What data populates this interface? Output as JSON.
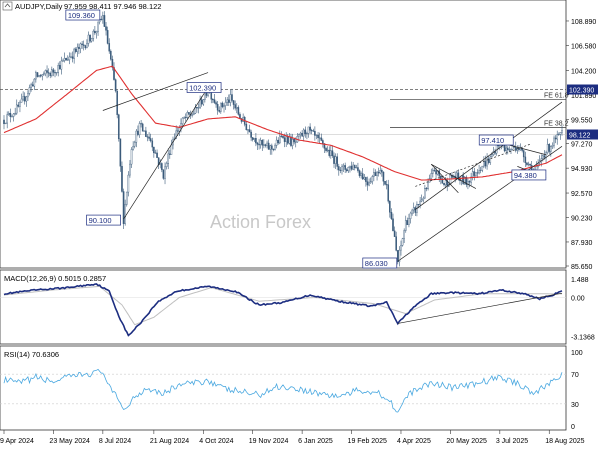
{
  "chart_data": {
    "type": "line",
    "watermark": "Action Forex",
    "title": "AUDJPY,Daily",
    "ohlc_text": "97.959 98.411 97.946 98.122",
    "x": [
      "9 Apr 2024",
      "23 May 2024",
      "8 Jul 2024",
      "21 Aug 2024",
      "4 Oct 2024",
      "19 Nov 2024",
      "6 Jan 2025",
      "19 Feb 2025",
      "4 Apr 2025",
      "20 May 2025",
      "3 Jul 2025",
      "18 Aug 2025"
    ],
    "price_panel": {
      "ylim": [
        85.65,
        110.5
      ],
      "y_ticks": [
        "108.890",
        "106.580",
        "104.200",
        "101.890",
        "99.550",
        "97.270",
        "94.930",
        "92.570",
        "90.230",
        "87.930",
        "85.650"
      ],
      "y_tick_values": [
        108.89,
        106.58,
        104.2,
        101.89,
        99.55,
        97.27,
        94.93,
        92.57,
        90.23,
        87.93,
        85.65
      ],
      "current_price": 98.122,
      "current_price_label": "98.122",
      "resistance_level": 102.39,
      "resistance_label": "102.390",
      "fib_levels": [
        {
          "name": "FE 61.8",
          "value": 101.45
        },
        {
          "name": "FE 38.2",
          "value": 98.8
        }
      ],
      "annotations": [
        {
          "label": "109.360",
          "value": 109.36,
          "date_index": 62
        },
        {
          "label": "90.100",
          "value": 90.1,
          "date_index": 75
        },
        {
          "label": "102.390",
          "value": 102.39,
          "date_index": 128
        },
        {
          "label": "86.030",
          "value": 86.03,
          "date_index": 247
        },
        {
          "label": "97.410",
          "value": 97.41,
          "date_index": 310
        },
        {
          "label": "94.380",
          "value": 94.38,
          "date_index": 333
        }
      ],
      "series": [
        {
          "type": "candlestick",
          "color": "#3a5a7a",
          "values": [
            {
              "i": 0,
              "c": 99.5
            },
            {
              "i": 10,
              "c": 100.8
            },
            {
              "i": 20,
              "c": 103.6
            },
            {
              "i": 30,
              "c": 104.0
            },
            {
              "i": 40,
              "c": 105.4
            },
            {
              "i": 50,
              "c": 106.6
            },
            {
              "i": 58,
              "c": 108.1
            },
            {
              "i": 62,
              "c": 109.36
            },
            {
              "i": 66,
              "c": 106.0
            },
            {
              "i": 70,
              "c": 102.2
            },
            {
              "i": 75,
              "c": 90.1
            },
            {
              "i": 80,
              "c": 97.0
            },
            {
              "i": 85,
              "c": 98.9
            },
            {
              "i": 92,
              "c": 97.6
            },
            {
              "i": 100,
              "c": 94.3
            },
            {
              "i": 106,
              "c": 97.8
            },
            {
              "i": 113,
              "c": 99.6
            },
            {
              "i": 120,
              "c": 100.3
            },
            {
              "i": 128,
              "c": 102.39
            },
            {
              "i": 135,
              "c": 100.6
            },
            {
              "i": 142,
              "c": 101.5
            },
            {
              "i": 148,
              "c": 99.8
            },
            {
              "i": 155,
              "c": 98.2
            },
            {
              "i": 162,
              "c": 97.0
            },
            {
              "i": 168,
              "c": 96.8
            },
            {
              "i": 175,
              "c": 98.0
            },
            {
              "i": 182,
              "c": 97.2
            },
            {
              "i": 190,
              "c": 98.6
            },
            {
              "i": 198,
              "c": 97.4
            },
            {
              "i": 205,
              "c": 96.2
            },
            {
              "i": 212,
              "c": 94.8
            },
            {
              "i": 220,
              "c": 95.2
            },
            {
              "i": 228,
              "c": 93.6
            },
            {
              "i": 235,
              "c": 94.9
            },
            {
              "i": 240,
              "c": 93.2
            },
            {
              "i": 247,
              "c": 86.03
            },
            {
              "i": 252,
              "c": 89.8
            },
            {
              "i": 258,
              "c": 91.0
            },
            {
              "i": 264,
              "c": 92.6
            },
            {
              "i": 270,
              "c": 94.8
            },
            {
              "i": 276,
              "c": 93.4
            },
            {
              "i": 282,
              "c": 94.2
            },
            {
              "i": 290,
              "c": 93.6
            },
            {
              "i": 298,
              "c": 95.0
            },
            {
              "i": 305,
              "c": 95.8
            },
            {
              "i": 310,
              "c": 97.41
            },
            {
              "i": 316,
              "c": 96.6
            },
            {
              "i": 322,
              "c": 97.1
            },
            {
              "i": 328,
              "c": 95.6
            },
            {
              "i": 333,
              "c": 94.38
            },
            {
              "i": 338,
              "c": 96.2
            },
            {
              "i": 344,
              "c": 97.3
            },
            {
              "i": 350,
              "c": 98.122
            }
          ]
        },
        {
          "type": "moving-average",
          "color": "#e03030",
          "values": [
            {
              "i": 0,
              "c": 98.3
            },
            {
              "i": 20,
              "c": 99.6
            },
            {
              "i": 40,
              "c": 102.0
            },
            {
              "i": 58,
              "c": 104.2
            },
            {
              "i": 68,
              "c": 104.6
            },
            {
              "i": 80,
              "c": 102.0
            },
            {
              "i": 95,
              "c": 99.2
            },
            {
              "i": 110,
              "c": 98.8
            },
            {
              "i": 128,
              "c": 99.6
            },
            {
              "i": 145,
              "c": 99.8
            },
            {
              "i": 165,
              "c": 98.6
            },
            {
              "i": 185,
              "c": 97.6
            },
            {
              "i": 205,
              "c": 97.1
            },
            {
              "i": 225,
              "c": 96.0
            },
            {
              "i": 245,
              "c": 94.6
            },
            {
              "i": 262,
              "c": 93.8
            },
            {
              "i": 280,
              "c": 93.9
            },
            {
              "i": 300,
              "c": 94.1
            },
            {
              "i": 320,
              "c": 94.6
            },
            {
              "i": 340,
              "c": 95.4
            },
            {
              "i": 350,
              "c": 96.2
            }
          ]
        }
      ]
    },
    "macd_panel": {
      "label": "MACD(12,26,9) 0.5015 0.2857",
      "ylim": [
        -3.6,
        1.9
      ],
      "y_ticks": [
        "1.488",
        "0.00",
        "-3.1368"
      ],
      "y_tick_values": [
        1.488,
        0,
        -3.1368
      ],
      "series": [
        {
          "name": "MACD",
          "color": "#1c2d80",
          "values": [
            {
              "i": 0,
              "v": 0.3
            },
            {
              "i": 20,
              "v": 0.6
            },
            {
              "i": 40,
              "v": 0.8
            },
            {
              "i": 58,
              "v": 1.1
            },
            {
              "i": 66,
              "v": 0.5
            },
            {
              "i": 72,
              "v": -1.5
            },
            {
              "i": 78,
              "v": -3.1
            },
            {
              "i": 86,
              "v": -2.0
            },
            {
              "i": 96,
              "v": -0.4
            },
            {
              "i": 108,
              "v": 0.5
            },
            {
              "i": 128,
              "v": 0.9
            },
            {
              "i": 145,
              "v": 0.5
            },
            {
              "i": 160,
              "v": -0.6
            },
            {
              "i": 175,
              "v": -0.4
            },
            {
              "i": 192,
              "v": 0.2
            },
            {
              "i": 210,
              "v": -0.3
            },
            {
              "i": 230,
              "v": -0.7
            },
            {
              "i": 240,
              "v": -0.4
            },
            {
              "i": 247,
              "v": -2.1
            },
            {
              "i": 256,
              "v": -0.9
            },
            {
              "i": 268,
              "v": 0.3
            },
            {
              "i": 280,
              "v": 0.4
            },
            {
              "i": 298,
              "v": 0.3
            },
            {
              "i": 312,
              "v": 0.6
            },
            {
              "i": 326,
              "v": 0.3
            },
            {
              "i": 336,
              "v": -0.1
            },
            {
              "i": 344,
              "v": 0.2
            },
            {
              "i": 350,
              "v": 0.5
            }
          ]
        },
        {
          "name": "Signal",
          "color": "#c0c0c0",
          "values": [
            {
              "i": 0,
              "v": 0.2
            },
            {
              "i": 30,
              "v": 0.6
            },
            {
              "i": 60,
              "v": 0.9
            },
            {
              "i": 74,
              "v": -0.6
            },
            {
              "i": 82,
              "v": -2.2
            },
            {
              "i": 94,
              "v": -1.6
            },
            {
              "i": 110,
              "v": 0.0
            },
            {
              "i": 130,
              "v": 0.8
            },
            {
              "i": 160,
              "v": -0.3
            },
            {
              "i": 195,
              "v": 0.0
            },
            {
              "i": 232,
              "v": -0.5
            },
            {
              "i": 252,
              "v": -1.3
            },
            {
              "i": 270,
              "v": -0.2
            },
            {
              "i": 300,
              "v": 0.3
            },
            {
              "i": 330,
              "v": 0.3
            },
            {
              "i": 350,
              "v": 0.29
            }
          ]
        }
      ],
      "trendline": [
        {
          "i": 247,
          "v": -2.1
        },
        {
          "i": 350,
          "v": 0.35
        }
      ]
    },
    "rsi_panel": {
      "label": "RSI(14) 70.6306",
      "ylim": [
        0,
        100
      ],
      "y_ticks": [
        "100",
        "70",
        "30",
        "0"
      ],
      "y_tick_values": [
        100,
        70,
        30,
        0
      ],
      "series": [
        {
          "name": "RSI",
          "color": "#4aa8e0",
          "values": [
            {
              "i": 0,
              "v": 62
            },
            {
              "i": 10,
              "v": 58
            },
            {
              "i": 20,
              "v": 66
            },
            {
              "i": 30,
              "v": 60
            },
            {
              "i": 45,
              "v": 68
            },
            {
              "i": 58,
              "v": 72
            },
            {
              "i": 62,
              "v": 75
            },
            {
              "i": 66,
              "v": 52
            },
            {
              "i": 72,
              "v": 35
            },
            {
              "i": 76,
              "v": 22
            },
            {
              "i": 82,
              "v": 40
            },
            {
              "i": 90,
              "v": 52
            },
            {
              "i": 100,
              "v": 44
            },
            {
              "i": 110,
              "v": 56
            },
            {
              "i": 120,
              "v": 58
            },
            {
              "i": 128,
              "v": 62
            },
            {
              "i": 138,
              "v": 50
            },
            {
              "i": 150,
              "v": 46
            },
            {
              "i": 160,
              "v": 42
            },
            {
              "i": 172,
              "v": 54
            },
            {
              "i": 185,
              "v": 50
            },
            {
              "i": 198,
              "v": 44
            },
            {
              "i": 210,
              "v": 40
            },
            {
              "i": 222,
              "v": 48
            },
            {
              "i": 234,
              "v": 46
            },
            {
              "i": 242,
              "v": 35
            },
            {
              "i": 247,
              "v": 18
            },
            {
              "i": 252,
              "v": 38
            },
            {
              "i": 260,
              "v": 52
            },
            {
              "i": 270,
              "v": 58
            },
            {
              "i": 282,
              "v": 52
            },
            {
              "i": 295,
              "v": 56
            },
            {
              "i": 310,
              "v": 66
            },
            {
              "i": 322,
              "v": 58
            },
            {
              "i": 333,
              "v": 44
            },
            {
              "i": 342,
              "v": 58
            },
            {
              "i": 350,
              "v": 70.6
            }
          ]
        }
      ]
    }
  }
}
